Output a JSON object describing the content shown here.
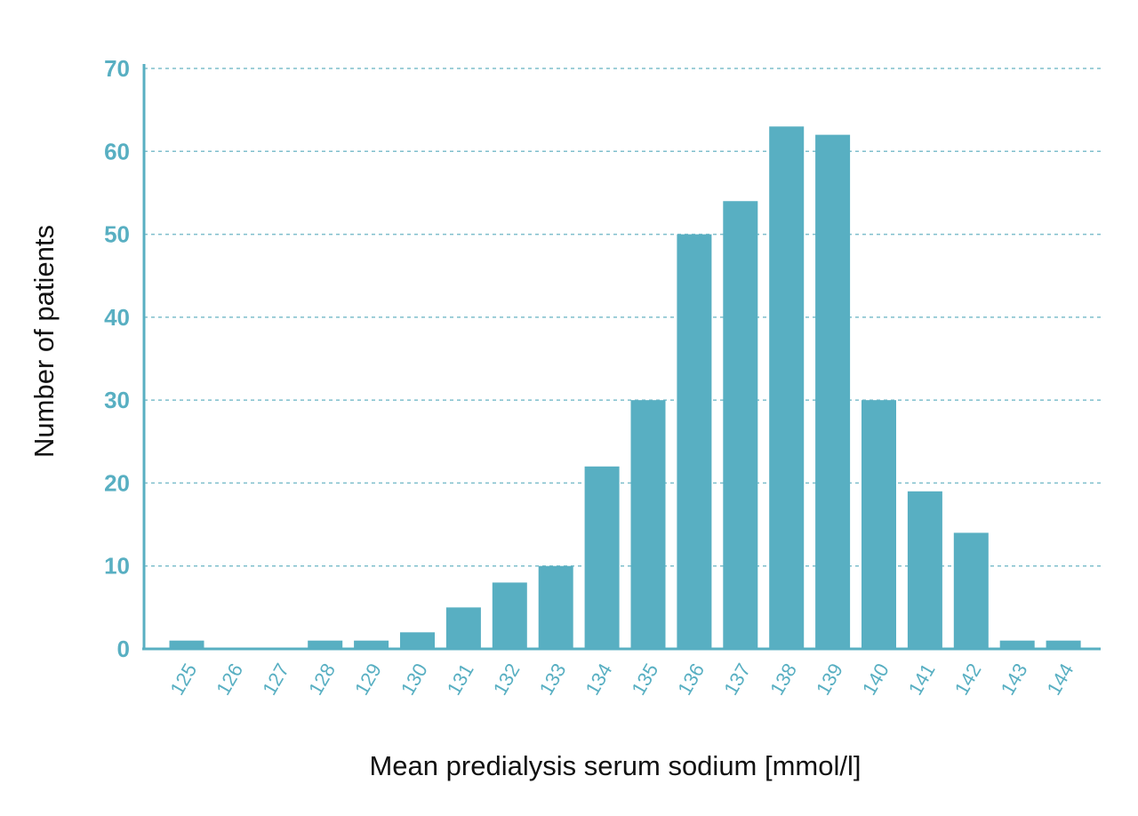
{
  "chart_data": {
    "type": "bar",
    "title": "",
    "xlabel": "Mean predialysis serum sodium [mmol/l]",
    "ylabel": "Number of patients",
    "categories": [
      "125",
      "126",
      "127",
      "128",
      "129",
      "130",
      "131",
      "132",
      "133",
      "134",
      "135",
      "136",
      "137",
      "138",
      "139",
      "140",
      "141",
      "142",
      "143",
      "144"
    ],
    "values": [
      1,
      0,
      0,
      1,
      1,
      2,
      5,
      8,
      10,
      22,
      30,
      50,
      54,
      63,
      62,
      30,
      19,
      14,
      1,
      1
    ],
    "ylim": [
      0,
      70
    ],
    "yticks": [
      "0",
      "10",
      "20",
      "30",
      "40",
      "50",
      "60",
      "70"
    ],
    "grid": "horizontal dotted",
    "colors": {
      "bar": "#58afc2",
      "axis": "#58afc2",
      "grid": "#7fbfcc",
      "tick_label": "#58afc2",
      "axis_title": "#111111"
    }
  }
}
